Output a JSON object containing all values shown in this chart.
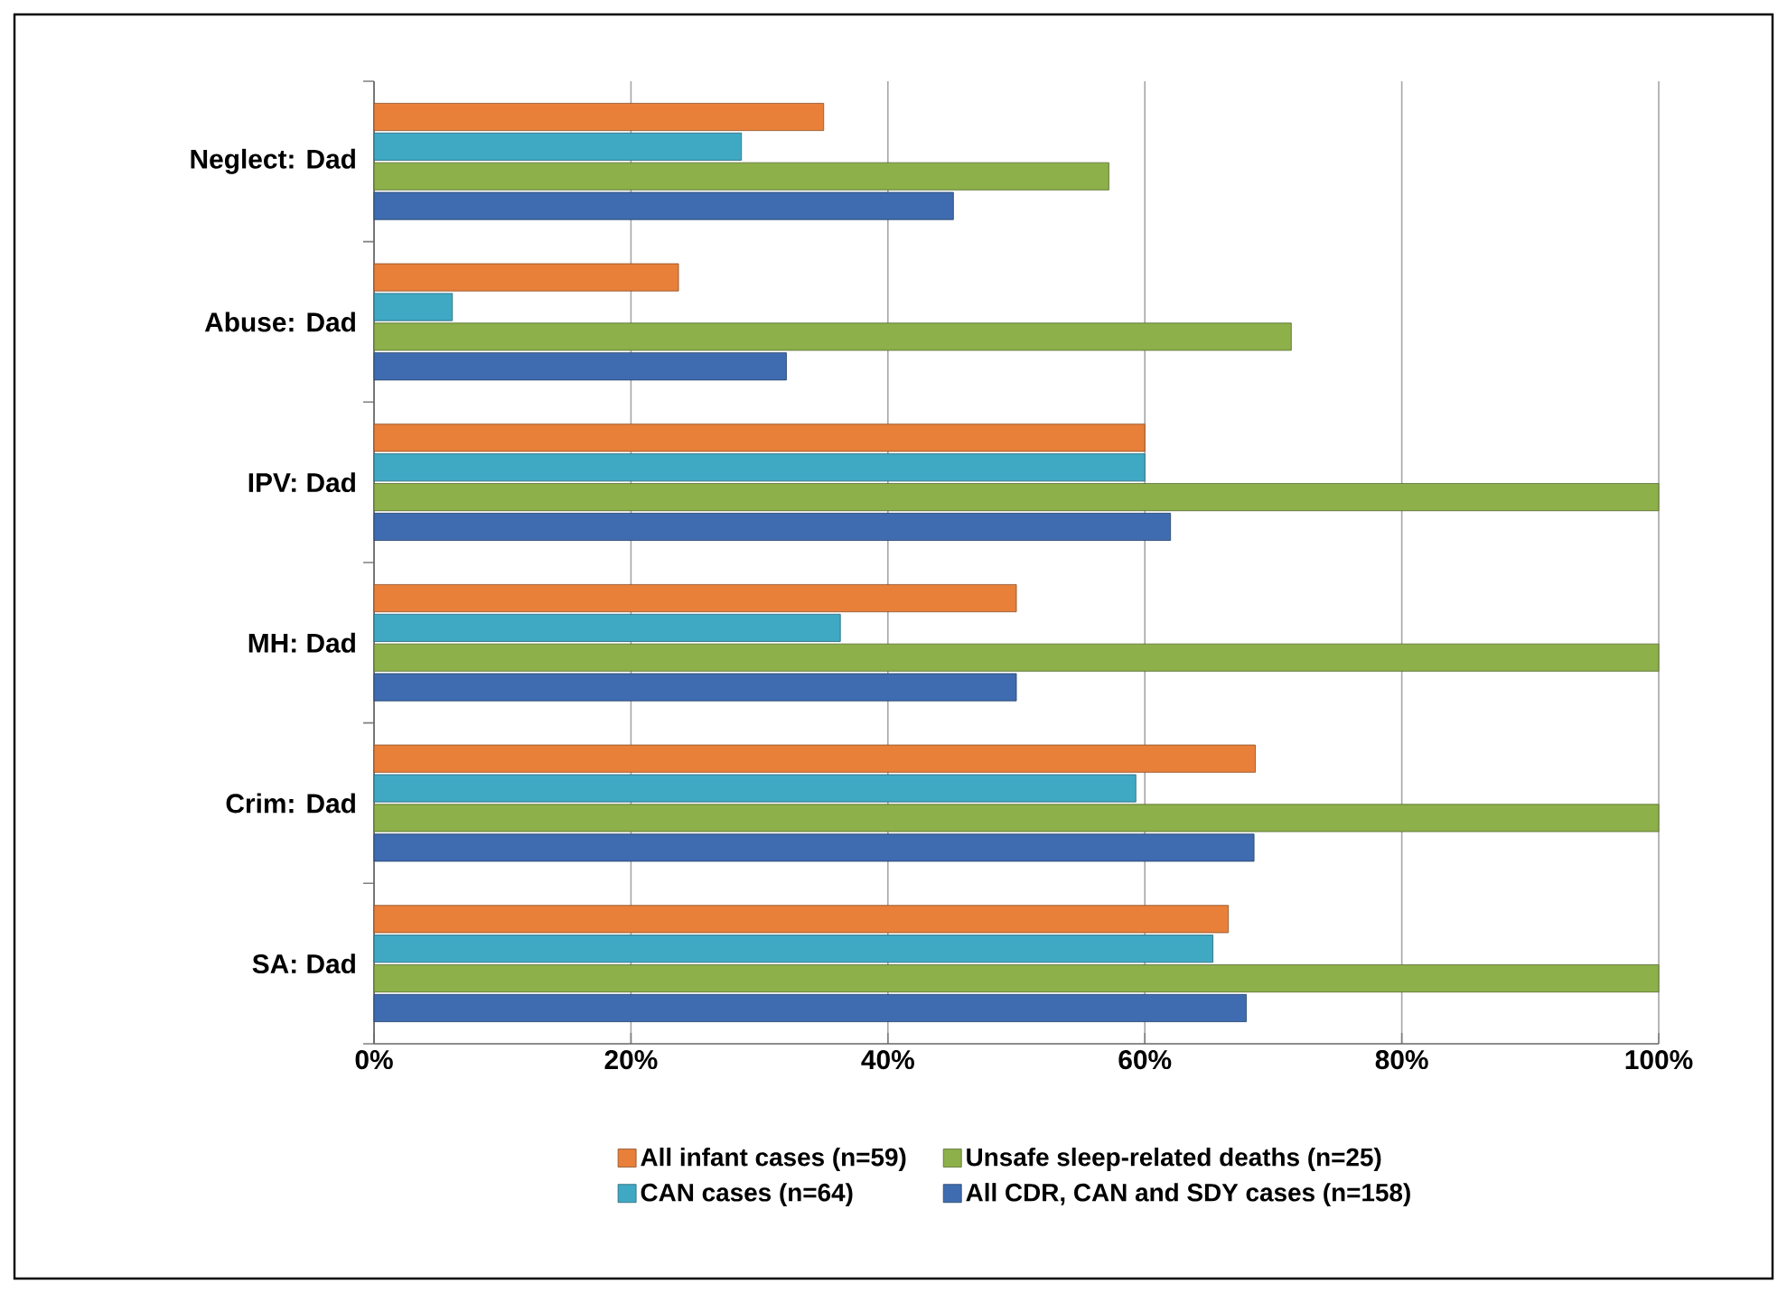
{
  "chart_data": {
    "type": "bar",
    "orientation": "horizontal",
    "categories": [
      "Neglect: Dad",
      "Abuse: Dad",
      "IPV: Dad",
      "MH: Dad",
      "Crim: Dad",
      "SA: Dad"
    ],
    "series": [
      {
        "name": "All infant cases (n=59)",
        "color": "#e8803a",
        "values": [
          35.0,
          23.7,
          60.0,
          50.0,
          68.6,
          66.5
        ]
      },
      {
        "name": "CAN cases (n=64)",
        "color": "#3fa9c4",
        "values": [
          28.6,
          6.1,
          60.0,
          36.3,
          59.3,
          65.3
        ]
      },
      {
        "name": "Unsafe sleep-related  deaths (n=25)",
        "color": "#8db04a",
        "values": [
          57.2,
          71.4,
          100,
          100,
          100,
          100
        ]
      },
      {
        "name": "All CDR, CAN and SDY  cases (n=158)",
        "color": "#3f6cb0",
        "values": [
          45.1,
          32.1,
          62.0,
          50.0,
          68.5,
          67.9
        ]
      }
    ],
    "xlim": [
      0,
      100
    ],
    "xticks": [
      {
        "value": 0,
        "label": "0%"
      },
      {
        "value": 20,
        "label": "20%"
      },
      {
        "value": 40,
        "label": "40%"
      },
      {
        "value": 60,
        "label": "60%"
      },
      {
        "value": 80,
        "label": "80%"
      },
      {
        "value": 100,
        "label": "100%"
      }
    ],
    "grid": "x",
    "legend": "bottom"
  }
}
